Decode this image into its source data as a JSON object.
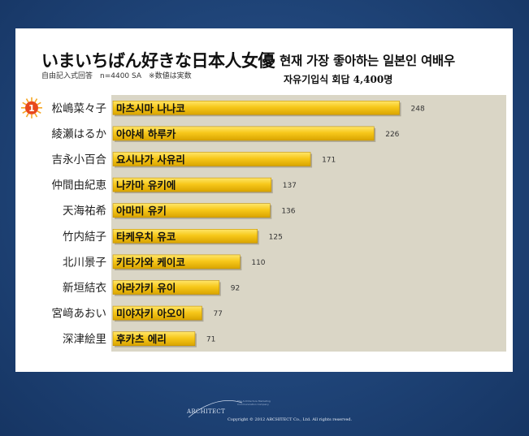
{
  "title_jp": "いまいちばん好きな日本人女優",
  "title_kr": "현재 가장 좋아하는 일본인 여배우",
  "subtitle_jp": "自由記入式回答　n=4400 SA　※数値は実数",
  "subtitle_kr": "자유기입식 회답 4,400명",
  "footer": {
    "logo_text": "ARCHITECT",
    "tagline": "The Architecture Marketing Communication Company",
    "copyright": "Copyright © 2012 ARCHITECT Co., Ltd. All rights reserved."
  },
  "colors": {
    "background": "#1f4478",
    "plot_bg": "#dad6c6",
    "bar": "#f7c81a",
    "bar_dark": "#d9a400",
    "rank_badge": "#e8481c"
  },
  "chart_data": {
    "type": "bar",
    "orientation": "horizontal",
    "rank_badge": "1",
    "categories": [
      "松嶋菜々子",
      "綾瀬はるか",
      "吉永小百合",
      "仲間由紀恵",
      "天海祐希",
      "竹内結子",
      "北川景子",
      "新垣結衣",
      "宮﨑あおい",
      "深津絵里"
    ],
    "bar_labels": [
      "마츠시마 나나코",
      "아야세 하루카",
      "요시나가 사유리",
      "나카마 유키에",
      "아마미 유키",
      "타케우치 유코",
      "키타가와 케이코",
      "아라가키 유이",
      "미야자키 아오이",
      "후카츠 에리"
    ],
    "values": [
      248,
      226,
      171,
      137,
      136,
      125,
      110,
      92,
      77,
      71
    ],
    "xlim": [
      0,
      280
    ]
  }
}
